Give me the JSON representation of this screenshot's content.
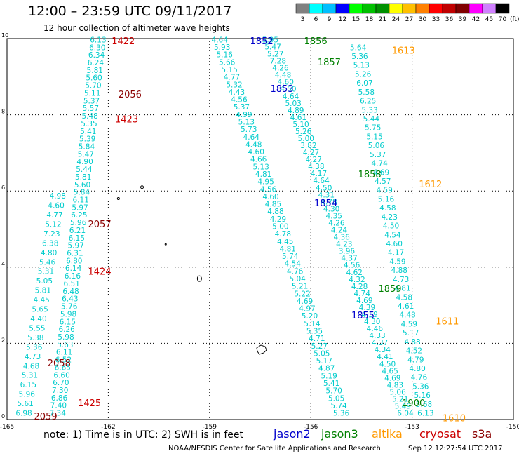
{
  "title": "12:00 – 23:59 UTC 09/11/2017",
  "subtitle": "12 hour collection of altimeter wave heights",
  "units_label": "(ft)",
  "color_scale": {
    "ticks": [
      "3",
      "6",
      "9",
      "12",
      "15",
      "18",
      "21",
      "24",
      "27",
      "30",
      "33",
      "36",
      "39",
      "42",
      "45",
      "70"
    ],
    "colors": [
      "#808080",
      "#00ffff",
      "#00bfff",
      "#0000ff",
      "#00ff00",
      "#00c000",
      "#009000",
      "#ffff00",
      "#ffc000",
      "#ff8000",
      "#ff0000",
      "#c00000",
      "#800000",
      "#ff00ff",
      "#d080ff",
      "#000000"
    ]
  },
  "note": "note: 1) Time is in UTC; 2) SWH is in feet",
  "legend": [
    {
      "label": "jason2",
      "color": "#0000cc"
    },
    {
      "label": "jason3",
      "color": "#008000"
    },
    {
      "label": "altika",
      "color": "#ff9900"
    },
    {
      "label": "cryosat",
      "color": "#cc0000"
    },
    {
      "label": "s3a",
      "color": "#8b0000"
    }
  ],
  "footer": "NOAA/NESDIS Center for Satellite Applications and Research",
  "footer_time": "Sep 12 12:27:54 UTC 2017",
  "chart_data": {
    "type": "scatter",
    "xlim": [
      -165,
      -150
    ],
    "ylim": [
      0,
      10
    ],
    "x_ticks": [
      "-165",
      "-162",
      "-159",
      "-156",
      "-153",
      "-150"
    ],
    "y_ticks": [
      "0",
      "2",
      "4",
      "6",
      "8",
      "10"
    ],
    "grid": true,
    "wave_color": "#00cccc",
    "tracks": [
      {
        "values": [
          "6.13",
          "6.30",
          "6.34",
          "6.24",
          "5.81",
          "5.60",
          "5.70",
          "5.11",
          "5.37",
          "5.57",
          "5.48",
          "5.35",
          "5.41",
          "5.39",
          "5.84",
          "5.47",
          "4.90",
          "5.44",
          "5.81",
          "5.60",
          "5.84",
          "6.11",
          "5.97",
          "6.25",
          "5.96",
          "6.21",
          "6.15",
          "5.97",
          "6.31",
          "6.80",
          "6.14",
          "6.16",
          "6.51",
          "6.48",
          "6.43",
          "5.76",
          "5.98",
          "6.15",
          "6.26",
          "5.98",
          "5.63",
          "6.11",
          "6.52",
          "6.65",
          "6.60",
          "6.70",
          "7.30",
          "6.86",
          "7.40",
          "7.34"
        ],
        "start": [
          -162.3,
          9.9
        ],
        "end": [
          -163.5,
          0.1
        ]
      },
      {
        "values": [
          "4.98",
          "4.60",
          "4.77",
          "5.12",
          "7.23",
          "6.38",
          "4.80",
          "5.46",
          "5.31",
          "5.05",
          "5.81",
          "4.45",
          "5.65",
          "4.40",
          "5.55",
          "5.38",
          "5.36",
          "4.73",
          "4.68",
          "5.31",
          "6.15",
          "5.96",
          "5.61",
          "6.98"
        ],
        "start": [
          -163.5,
          5.8
        ],
        "end": [
          -164.5,
          0.1
        ]
      },
      {
        "values": [
          "4.64",
          "5.93",
          "5.16",
          "5.66",
          "5.15",
          "4.77",
          "5.32",
          "4.43",
          "4.56",
          "5.37",
          "4.99",
          "5.13",
          "5.73",
          "4.64",
          "4.48",
          "4.60",
          "4.66",
          "5.13",
          "4.81",
          "4.95",
          "4.56",
          "4.60",
          "4.85",
          "4.88",
          "4.29",
          "5.00",
          "4.78",
          "4.45",
          "4.81",
          "5.74",
          "4.54",
          "4.76",
          "5.04",
          "5.21",
          "5.22",
          "4.69",
          "4.97",
          "5.20",
          "5.14",
          "5.35",
          "4.71",
          "5.27",
          "5.05",
          "5.17",
          "4.87",
          "5.19",
          "5.41",
          "5.70",
          "5.05",
          "5.74",
          "5.36"
        ],
        "start": [
          -158.7,
          9.9
        ],
        "end": [
          -155.1,
          0.1
        ]
      },
      {
        "values": [
          "5.95",
          "5.47",
          "5.27",
          "7.28",
          "4.26",
          "4.48",
          "4.60",
          "4.50",
          "4.64",
          "5.03",
          "4.89",
          "4.61",
          "5.10",
          "5.26",
          "5.00",
          "3.82",
          "4.27",
          "4.27",
          "4.38",
          "4.17",
          "4.64",
          "4.50",
          "4.31",
          "4.78",
          "4.30",
          "4.35",
          "4.26",
          "4.24",
          "4.36",
          "4.23",
          "3.96",
          "4.37",
          "4.56",
          "4.62",
          "4.32",
          "4.28",
          "4.74",
          "4.69",
          "4.39",
          "4.39",
          "4.30",
          "4.46",
          "4.33",
          "4.37",
          "4.34",
          "4.41",
          "4.50",
          "4.65",
          "4.69",
          "4.83",
          "5.06",
          "5.21",
          "5.49",
          "6.04"
        ],
        "start": [
          -157.2,
          9.9
        ],
        "end": [
          -153.2,
          0.1
        ]
      },
      {
        "values": [
          "5.64",
          "5.36",
          "5.13",
          "5.26",
          "6.07",
          "5.58",
          "6.25",
          "5.33",
          "5.44",
          "5.75",
          "5.15",
          "5.06",
          "5.37",
          "4.74",
          "4.69",
          "4.57",
          "4.59",
          "5.16",
          "4.58",
          "4.23",
          "4.50",
          "4.54",
          "4.60",
          "4.17",
          "4.59",
          "4.88",
          "4.73",
          "4.81",
          "4.58",
          "4.61",
          "4.48",
          "4.59",
          "5.17",
          "4.88",
          "4.52",
          "4.79",
          "4.80",
          "4.76",
          "5.36",
          "5.16",
          "5.68",
          "6.13"
        ],
        "start": [
          -154.6,
          9.7
        ],
        "end": [
          -152.6,
          0.1
        ]
      }
    ],
    "pass_labels": [
      {
        "text": "1422",
        "sat": "cryosat",
        "x": -161.9,
        "y": 9.85
      },
      {
        "text": "2056",
        "sat": "s3a",
        "x": -161.7,
        "y": 8.45
      },
      {
        "text": "1423",
        "sat": "cryosat",
        "x": -161.8,
        "y": 7.8
      },
      {
        "text": "2057",
        "sat": "s3a",
        "x": -162.6,
        "y": 5.05
      },
      {
        "text": "1424",
        "sat": "cryosat",
        "x": -162.6,
        "y": 3.8
      },
      {
        "text": "2058",
        "sat": "s3a",
        "x": -163.8,
        "y": 1.4
      },
      {
        "text": "1425",
        "sat": "cryosat",
        "x": -162.9,
        "y": 0.35
      },
      {
        "text": "2059",
        "sat": "s3a",
        "x": -164.2,
        "y": 0.0
      },
      {
        "text": "1852",
        "sat": "jason2",
        "x": -157.8,
        "y": 9.85
      },
      {
        "text": "1856",
        "sat": "jason3",
        "x": -156.2,
        "y": 9.85
      },
      {
        "text": "1857",
        "sat": "jason3",
        "x": -155.8,
        "y": 9.3
      },
      {
        "text": "1853",
        "sat": "jason2",
        "x": -157.2,
        "y": 8.6
      },
      {
        "text": "1858",
        "sat": "jason3",
        "x": -154.6,
        "y": 6.35
      },
      {
        "text": "1854",
        "sat": "jason2",
        "x": -155.9,
        "y": 5.6
      },
      {
        "text": "1859",
        "sat": "jason3",
        "x": -154.0,
        "y": 3.35
      },
      {
        "text": "1855",
        "sat": "jason2",
        "x": -154.8,
        "y": 2.65
      },
      {
        "text": "1900",
        "sat": "jason3",
        "x": -153.3,
        "y": 0.35
      },
      {
        "text": "1613",
        "sat": "altika",
        "x": -153.6,
        "y": 9.6
      },
      {
        "text": "1612",
        "sat": "altika",
        "x": -152.8,
        "y": 6.1
      },
      {
        "text": "1611",
        "sat": "altika",
        "x": -152.3,
        "y": 2.5
      },
      {
        "text": "1610",
        "sat": "altika",
        "x": -152.1,
        "y": -0.05
      }
    ]
  }
}
